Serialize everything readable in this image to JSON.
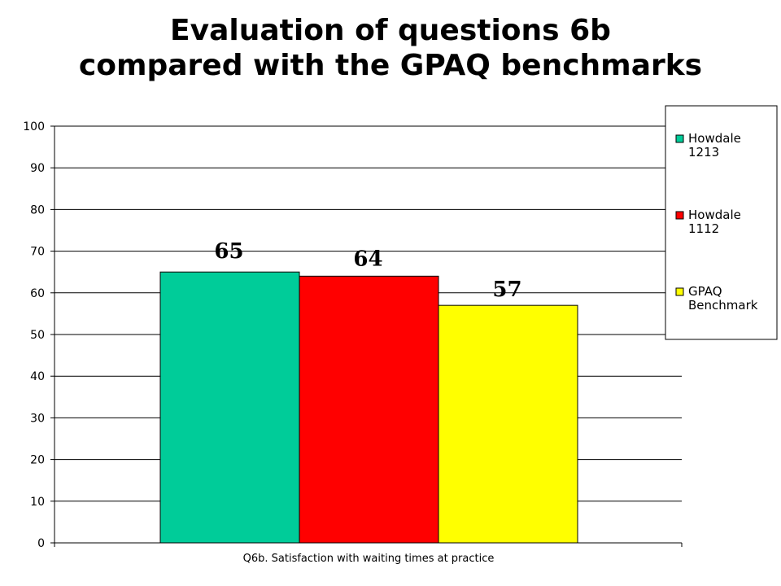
{
  "title": {
    "line1": "Evaluation of questions 6b",
    "line2": "compared with the GPAQ benchmarks"
  },
  "chart_data": {
    "type": "bar",
    "categories": [
      "Q6b. Satisfaction with waiting times at practice"
    ],
    "series": [
      {
        "name": "Howdale 1213",
        "values": [
          65
        ],
        "color": "#00cc99"
      },
      {
        "name": "Howdale 1112",
        "values": [
          64
        ],
        "color": "#ff0000"
      },
      {
        "name": "GPAQ Benchmark",
        "values": [
          57
        ],
        "color": "#ffff00"
      }
    ],
    "ylim": [
      0,
      100
    ],
    "yticks": [
      0,
      10,
      20,
      30,
      40,
      50,
      60,
      70,
      80,
      90,
      100
    ],
    "grid": true,
    "legend_position": "right",
    "legend": [
      {
        "lines": [
          "Howdale",
          "1213"
        ]
      },
      {
        "lines": [
          "Howdale",
          "1112"
        ]
      },
      {
        "lines": [
          "GPAQ",
          "Benchmark"
        ]
      }
    ],
    "data_labels": [
      "65",
      "64",
      "57"
    ]
  }
}
